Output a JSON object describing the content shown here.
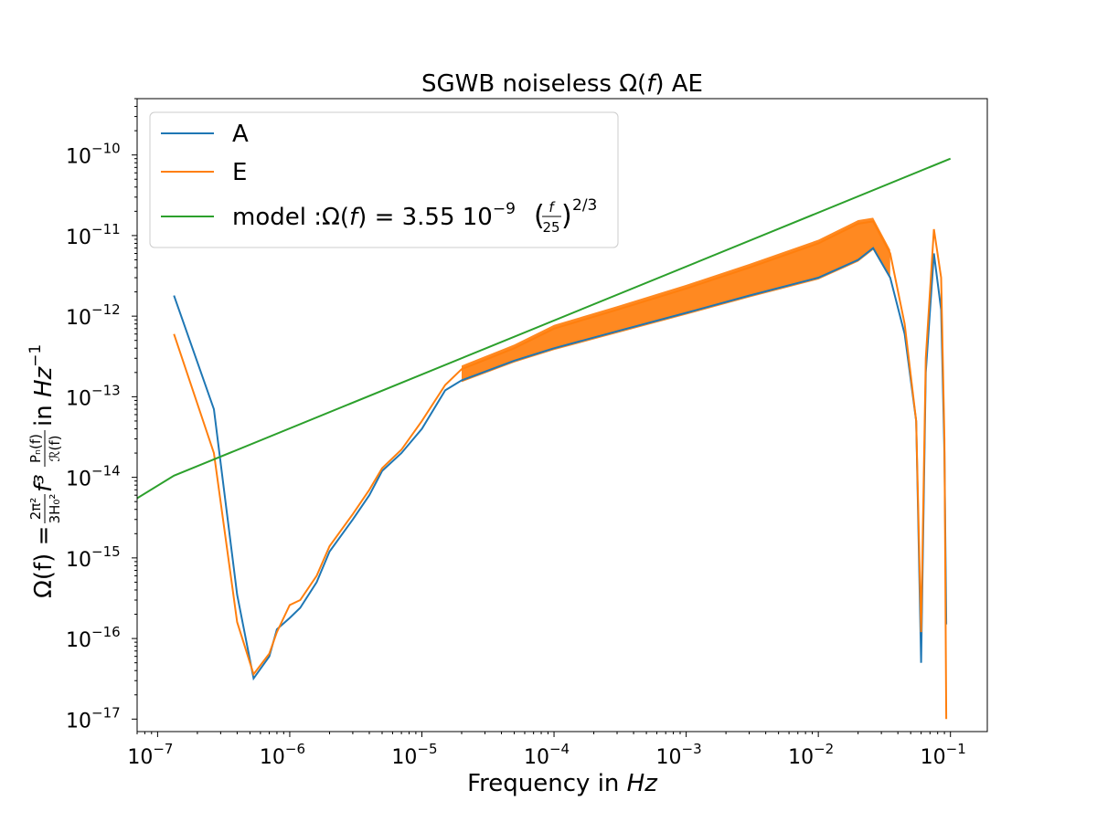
{
  "chart_data": {
    "type": "line",
    "title": "SGWB noiseless Ω(f) AE",
    "xlabel": "Frequency in Hz",
    "ylabel": "Ω(f) = 2π²/(3H₀²) f³ Pₙ(f)/R(f) in Hz⁻¹",
    "xscale": "log",
    "yscale": "log",
    "xlim": [
      7e-08,
      0.19
    ],
    "ylim": [
      7e-18,
      5e-10
    ],
    "x_tick_labels": [
      "10",
      "10",
      "10",
      "10",
      "10",
      "10",
      "10"
    ],
    "x_tick_exponents": [
      "-7",
      "-6",
      "-5",
      "-4",
      "-3",
      "-2",
      "-1"
    ],
    "y_tick_labels": [
      "10",
      "10",
      "10",
      "10",
      "10",
      "10",
      "10",
      "10"
    ],
    "y_tick_exponents": [
      "-17",
      "-16",
      "-15",
      "-14",
      "-13",
      "-12",
      "-11",
      "-10"
    ],
    "grid": false,
    "legend_position": "top-left",
    "series": [
      {
        "name": "A",
        "color": "#1f77b4",
        "points": [
          [
            1.33e-07,
            1.8e-12
          ],
          [
            2.67e-07,
            7e-14
          ],
          [
            4e-07,
            3.5e-16
          ],
          [
            5.33e-07,
            3.2e-17
          ],
          [
            7e-07,
            6e-17
          ],
          [
            8e-07,
            1.3e-16
          ],
          [
            1e-06,
            1.8e-16
          ],
          [
            1.2e-06,
            2.4e-16
          ],
          [
            1.6e-06,
            5e-16
          ],
          [
            2e-06,
            1.2e-15
          ],
          [
            3e-06,
            3e-15
          ],
          [
            4e-06,
            6e-15
          ],
          [
            5e-06,
            1.2e-14
          ],
          [
            7e-06,
            2e-14
          ],
          [
            1e-05,
            4e-14
          ],
          [
            1.5e-05,
            1.2e-13
          ],
          [
            2e-05,
            1.6e-13
          ],
          [
            5e-05,
            2.8e-13
          ],
          [
            0.0001,
            4e-13
          ],
          [
            0.0003,
            6.5e-13
          ],
          [
            0.001,
            1.1e-12
          ],
          [
            0.003,
            1.8e-12
          ],
          [
            0.01,
            3e-12
          ],
          [
            0.02,
            5e-12
          ],
          [
            0.026,
            7e-12
          ],
          [
            0.035,
            3e-12
          ],
          [
            0.045,
            6e-13
          ],
          [
            0.055,
            5e-14
          ],
          [
            0.06,
            5e-17
          ],
          [
            0.065,
            2e-13
          ],
          [
            0.075,
            6e-12
          ],
          [
            0.085,
            1.2e-12
          ],
          [
            0.09,
            2e-14
          ],
          [
            0.093,
            1.5e-16
          ]
        ]
      },
      {
        "name": "E",
        "color": "#ff7f0e",
        "points": [
          [
            1.33e-07,
            6e-13
          ],
          [
            2.67e-07,
            2e-14
          ],
          [
            4e-07,
            1.6e-16
          ],
          [
            5.33e-07,
            3.6e-17
          ],
          [
            7e-07,
            6.5e-17
          ],
          [
            8e-07,
            1.2e-16
          ],
          [
            1e-06,
            2.6e-16
          ],
          [
            1.2e-06,
            3e-16
          ],
          [
            1.6e-06,
            6e-16
          ],
          [
            2e-06,
            1.4e-15
          ],
          [
            3e-06,
            3.5e-15
          ],
          [
            4e-06,
            7e-15
          ],
          [
            5e-06,
            1.3e-14
          ],
          [
            7e-06,
            2.2e-14
          ],
          [
            1e-05,
            5e-14
          ],
          [
            1.5e-05,
            1.4e-13
          ],
          [
            2e-05,
            2.2e-13
          ],
          [
            5e-05,
            4e-13
          ],
          [
            0.0001,
            7e-13
          ],
          [
            0.0003,
            1.2e-12
          ],
          [
            0.001,
            2.2e-12
          ],
          [
            0.003,
            4e-12
          ],
          [
            0.01,
            8e-12
          ],
          [
            0.02,
            1.4e-11
          ],
          [
            0.026,
            1.5e-11
          ],
          [
            0.035,
            6e-12
          ],
          [
            0.045,
            8e-13
          ],
          [
            0.055,
            5e-14
          ],
          [
            0.06,
            1.2e-16
          ],
          [
            0.065,
            3e-13
          ],
          [
            0.075,
            1.2e-11
          ],
          [
            0.085,
            3e-12
          ],
          [
            0.09,
            3e-14
          ],
          [
            0.093,
            1e-17
          ]
        ]
      },
      {
        "name": "model :Ω(f) = 3.55 10⁻⁹(f/25)^(2/3)",
        "color": "#2ca02c",
        "points": [
          [
            7e-08,
            5.5e-15
          ],
          [
            1.33e-07,
            1.05e-14
          ],
          [
            0.1,
            9e-11
          ]
        ]
      }
    ]
  },
  "band": {
    "color": "#ff7f0e",
    "x_start": 2e-05,
    "x_end": 0.035
  },
  "legend": {
    "entries": [
      "A",
      "E"
    ],
    "model_prefix": "model :Ω(",
    "model_f": "f",
    "model_mid": ") = 3.55 10",
    "model_exp": "−9",
    "model_frac_num": "f",
    "model_frac_den": "25",
    "model_power": "2/3"
  },
  "labels": {
    "title_pre": "SGWB noiseless Ω(",
    "title_f": "f",
    "title_post": ") AE",
    "xlabel_pre": "Frequency in ",
    "xlabel_unit": "Hz",
    "ylabel_main": "Ω(f) = ",
    "ylabel_coef_num": "2π²",
    "ylabel_coef_den": "3H₀²",
    "ylabel_f3": "f³",
    "ylabel_ratio_num": "Pₙ(f)",
    "ylabel_ratio_den": "ℛ(f)",
    "ylabel_in": " in ",
    "ylabel_unit": "Hz",
    "ylabel_unit_exp": "−1"
  }
}
